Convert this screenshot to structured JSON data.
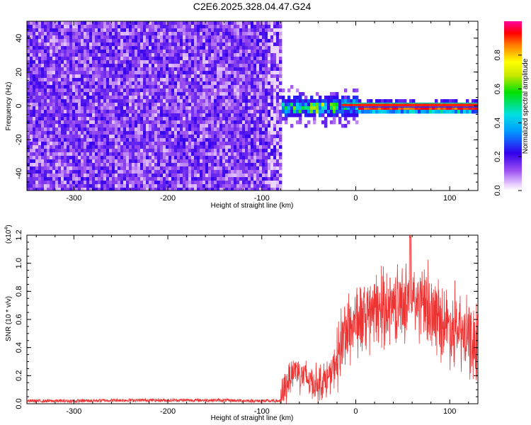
{
  "figure_title": "C2E6.2025.328.04.47.G24",
  "chart_data": [
    {
      "type": "heatmap",
      "title": "C2E6.2025.328.04.47.G24",
      "xlabel": "Height of straight line (km)",
      "ylabel": "Frequency (Hz)",
      "xlim": [
        -350,
        130
      ],
      "ylim": [
        -50,
        50
      ],
      "xticks": [
        -300,
        -200,
        -100,
        0,
        100
      ],
      "yticks": [
        -40,
        -20,
        0,
        20,
        40
      ],
      "xtick_labels": [
        "-300",
        "-200",
        "-100",
        "0",
        "100"
      ],
      "ytick_labels": [
        "-40",
        "-20",
        "0",
        "20",
        "40"
      ],
      "noise_region_x": [
        -350,
        -80
      ],
      "signal_band_hz": [
        -1,
        2
      ],
      "signal_start_x": -90,
      "colorbar": {
        "label": "Normalized spectral amplitude",
        "range": [
          0,
          1
        ],
        "ticks": [
          "0.0",
          "0.2",
          "0.4",
          "0.6",
          "0.8"
        ],
        "tick_values": [
          0.0,
          0.2,
          0.4,
          0.6,
          0.8
        ]
      }
    },
    {
      "type": "line",
      "xlabel": "Height of straight line (km)",
      "ylabel": "SNR (10 * v/v)",
      "y_multiplier": "(x10",
      "y_multiplier_exp": "4",
      "y_multiplier_close": ")",
      "xlim": [
        -350,
        130
      ],
      "ylim": [
        0.0,
        1.2
      ],
      "xticks": [
        -300,
        -200,
        -100,
        0,
        100
      ],
      "yticks": [
        0.0,
        0.2,
        0.4,
        0.6,
        0.8,
        1.0,
        1.2
      ],
      "xtick_labels": [
        "-300",
        "-200",
        "-100",
        "0",
        "100"
      ],
      "ytick_labels": [
        "0.0",
        "0.2",
        "0.4",
        "0.6",
        "0.8",
        "1.0",
        "1.2"
      ],
      "series": [
        {
          "name": "SNR",
          "color": "#ee3333",
          "envelope_x": [
            -350,
            -300,
            -250,
            -200,
            -150,
            -100,
            -80,
            -75,
            -70,
            -65,
            -60,
            -55,
            -50,
            -45,
            -40,
            -35,
            -30,
            -25,
            -22,
            -20,
            -18,
            -15,
            -10,
            -5,
            0,
            10,
            20,
            30,
            40,
            50,
            60,
            70,
            80,
            90,
            100,
            110,
            120,
            130
          ],
          "envelope_y": [
            0.02,
            0.02,
            0.025,
            0.025,
            0.025,
            0.02,
            0.02,
            0.12,
            0.2,
            0.25,
            0.22,
            0.2,
            0.17,
            0.15,
            0.15,
            0.16,
            0.18,
            0.22,
            0.28,
            0.3,
            0.35,
            0.45,
            0.52,
            0.55,
            0.6,
            0.6,
            0.65,
            0.68,
            0.7,
            0.72,
            0.75,
            0.7,
            0.65,
            0.6,
            0.55,
            0.5,
            0.45,
            0.42
          ]
        }
      ]
    }
  ]
}
